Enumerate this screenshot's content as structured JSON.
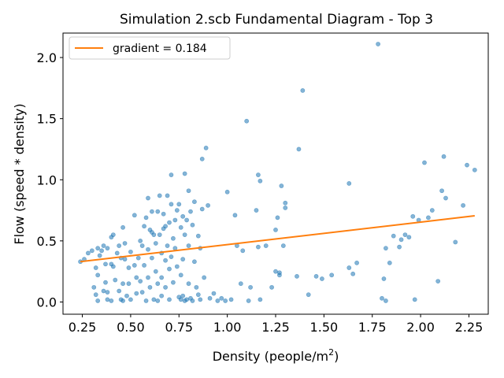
{
  "chart_data": {
    "type": "scatter",
    "title": "Simulation 2.scb Fundamental Diagram - Top 3",
    "xlabel": "Density (people/m",
    "xlabel_sup": "2",
    "xlabel_end": ")",
    "ylabel": "Flow (speed * density)",
    "xlim": [
      0.15,
      2.35
    ],
    "ylim": [
      -0.1,
      2.2
    ],
    "x_ticks": [
      0.25,
      0.5,
      0.75,
      1.0,
      1.25,
      1.5,
      1.75,
      2.0,
      2.25
    ],
    "x_tick_labels": [
      "0.25",
      "0.50",
      "0.75",
      "1.00",
      "1.25",
      "1.50",
      "1.75",
      "2.00",
      "2.25"
    ],
    "y_ticks": [
      0.0,
      0.5,
      1.0,
      1.5,
      2.0
    ],
    "y_tick_labels": [
      "0.0",
      "0.5",
      "1.0",
      "1.5",
      "2.0"
    ],
    "grid": false,
    "legend": {
      "position": "top-left",
      "entries": [
        "gradient = 0.184"
      ]
    },
    "colors": {
      "points": "#1f77b4",
      "fit": "#ff7f0e"
    },
    "series": [
      {
        "type": "line",
        "points": [
          [
            0.24,
            0.33
          ],
          [
            2.28,
            0.705
          ]
        ]
      },
      {
        "type": "scatter",
        "points": [
          [
            0.24,
            0.33
          ],
          [
            0.26,
            0.35
          ],
          [
            0.28,
            0.4
          ],
          [
            0.3,
            0.42
          ],
          [
            0.31,
            0.12
          ],
          [
            0.32,
            0.28
          ],
          [
            0.32,
            0.06
          ],
          [
            0.33,
            0.44
          ],
          [
            0.33,
            0.22
          ],
          [
            0.33,
            0.01
          ],
          [
            0.34,
            0.38
          ],
          [
            0.35,
            0.42
          ],
          [
            0.36,
            0.46
          ],
          [
            0.36,
            0.09
          ],
          [
            0.37,
            0.31
          ],
          [
            0.37,
            0.16
          ],
          [
            0.38,
            0.44
          ],
          [
            0.38,
            0.08
          ],
          [
            0.38,
            0.02
          ],
          [
            0.4,
            0.53
          ],
          [
            0.4,
            0.31
          ],
          [
            0.4,
            0.01
          ],
          [
            0.41,
            0.55
          ],
          [
            0.41,
            0.29
          ],
          [
            0.42,
            0.18
          ],
          [
            0.43,
            0.4
          ],
          [
            0.44,
            0.46
          ],
          [
            0.44,
            0.09
          ],
          [
            0.45,
            0.36
          ],
          [
            0.45,
            0.02
          ],
          [
            0.46,
            0.61
          ],
          [
            0.46,
            0.15
          ],
          [
            0.46,
            0.01
          ],
          [
            0.47,
            0.48
          ],
          [
            0.47,
            0.35
          ],
          [
            0.48,
            0.05
          ],
          [
            0.49,
            0.28
          ],
          [
            0.49,
            0.15
          ],
          [
            0.5,
            0.41
          ],
          [
            0.5,
            0.02
          ],
          [
            0.52,
            0.71
          ],
          [
            0.52,
            0.3
          ],
          [
            0.53,
            0.2
          ],
          [
            0.53,
            0.07
          ],
          [
            0.54,
            0.36
          ],
          [
            0.55,
            0.5
          ],
          [
            0.55,
            0.17
          ],
          [
            0.56,
            0.46
          ],
          [
            0.56,
            0.08
          ],
          [
            0.57,
            0.62
          ],
          [
            0.57,
            0.3
          ],
          [
            0.58,
            0.69
          ],
          [
            0.58,
            0.01
          ],
          [
            0.59,
            0.85
          ],
          [
            0.59,
            0.43
          ],
          [
            0.59,
            0.2
          ],
          [
            0.6,
            0.59
          ],
          [
            0.6,
            0.12
          ],
          [
            0.61,
            0.74
          ],
          [
            0.61,
            0.57
          ],
          [
            0.61,
            0.36
          ],
          [
            0.62,
            0.55
          ],
          [
            0.62,
            0.02
          ],
          [
            0.63,
            0.48
          ],
          [
            0.63,
            0.25
          ],
          [
            0.64,
            0.74
          ],
          [
            0.64,
            0.15
          ],
          [
            0.64,
            0.01
          ],
          [
            0.65,
            0.87
          ],
          [
            0.65,
            0.55
          ],
          [
            0.66,
            0.4
          ],
          [
            0.66,
            0.2
          ],
          [
            0.66,
            0.05
          ],
          [
            0.67,
            0.72
          ],
          [
            0.67,
            0.6
          ],
          [
            0.68,
            0.62
          ],
          [
            0.68,
            0.34
          ],
          [
            0.68,
            0.12
          ],
          [
            0.69,
            0.87
          ],
          [
            0.69,
            0.46
          ],
          [
            0.7,
            0.65
          ],
          [
            0.7,
            0.27
          ],
          [
            0.7,
            0.02
          ],
          [
            0.71,
            1.04
          ],
          [
            0.71,
            0.8
          ],
          [
            0.71,
            0.37
          ],
          [
            0.72,
            0.52
          ],
          [
            0.72,
            0.16
          ],
          [
            0.73,
            0.67
          ],
          [
            0.73,
            0.44
          ],
          [
            0.74,
            0.75
          ],
          [
            0.74,
            0.29
          ],
          [
            0.75,
            0.8
          ],
          [
            0.75,
            0.04
          ],
          [
            0.76,
            0.61
          ],
          [
            0.76,
            0.22
          ],
          [
            0.76,
            0.02
          ],
          [
            0.77,
            0.7
          ],
          [
            0.77,
            0.35
          ],
          [
            0.77,
            0.05
          ],
          [
            0.78,
            1.05
          ],
          [
            0.78,
            0.55
          ],
          [
            0.78,
            0.01
          ],
          [
            0.79,
            0.67
          ],
          [
            0.79,
            0.02
          ],
          [
            0.8,
            0.91
          ],
          [
            0.8,
            0.46
          ],
          [
            0.8,
            0.15
          ],
          [
            0.81,
            0.74
          ],
          [
            0.81,
            0.03
          ],
          [
            0.82,
            0.63
          ],
          [
            0.82,
            0.01
          ],
          [
            0.83,
            0.82
          ],
          [
            0.83,
            0.33
          ],
          [
            0.84,
            0.12
          ],
          [
            0.85,
            0.54
          ],
          [
            0.85,
            0.06
          ],
          [
            0.86,
            0.44
          ],
          [
            0.86,
            0.02
          ],
          [
            0.87,
            1.17
          ],
          [
            0.87,
            0.76
          ],
          [
            0.88,
            0.2
          ],
          [
            0.89,
            1.26
          ],
          [
            0.9,
            0.79
          ],
          [
            0.91,
            0.03
          ],
          [
            0.93,
            0.07
          ],
          [
            0.95,
            0.01
          ],
          [
            0.97,
            0.03
          ],
          [
            0.99,
            0.01
          ],
          [
            1.0,
            0.9
          ],
          [
            1.02,
            0.02
          ],
          [
            1.04,
            0.71
          ],
          [
            1.05,
            0.46
          ],
          [
            1.07,
            0.15
          ],
          [
            1.08,
            0.42
          ],
          [
            1.1,
            1.48
          ],
          [
            1.11,
            0.01
          ],
          [
            1.12,
            0.12
          ],
          [
            1.15,
            0.75
          ],
          [
            1.16,
            0.45
          ],
          [
            1.16,
            1.04
          ],
          [
            1.17,
            0.99
          ],
          [
            1.17,
            0.02
          ],
          [
            1.2,
            0.46
          ],
          [
            1.23,
            0.12
          ],
          [
            1.25,
            0.25
          ],
          [
            1.25,
            0.59
          ],
          [
            1.26,
            0.69
          ],
          [
            1.27,
            0.22
          ],
          [
            1.27,
            0.24
          ],
          [
            1.28,
            0.95
          ],
          [
            1.29,
            0.46
          ],
          [
            1.3,
            0.81
          ],
          [
            1.3,
            0.77
          ],
          [
            1.36,
            0.21
          ],
          [
            1.37,
            1.25
          ],
          [
            1.39,
            1.73
          ],
          [
            1.42,
            0.06
          ],
          [
            1.46,
            0.21
          ],
          [
            1.49,
            0.19
          ],
          [
            1.54,
            0.22
          ],
          [
            1.63,
            0.28
          ],
          [
            1.63,
            0.97
          ],
          [
            1.65,
            0.23
          ],
          [
            1.67,
            0.32
          ],
          [
            1.78,
            2.11
          ],
          [
            1.8,
            0.03
          ],
          [
            1.82,
            0.44
          ],
          [
            1.81,
            0.19
          ],
          [
            1.82,
            0.01
          ],
          [
            1.84,
            0.32
          ],
          [
            1.86,
            0.54
          ],
          [
            1.89,
            0.45
          ],
          [
            1.9,
            0.51
          ],
          [
            1.92,
            0.55
          ],
          [
            1.94,
            0.53
          ],
          [
            1.96,
            0.7
          ],
          [
            1.97,
            0.02
          ],
          [
            1.99,
            0.67
          ],
          [
            2.02,
            1.14
          ],
          [
            2.04,
            0.69
          ],
          [
            2.06,
            0.75
          ],
          [
            2.09,
            0.17
          ],
          [
            2.11,
            0.91
          ],
          [
            2.12,
            1.19
          ],
          [
            2.13,
            0.85
          ],
          [
            2.18,
            0.49
          ],
          [
            2.22,
            0.79
          ],
          [
            2.24,
            1.12
          ],
          [
            2.28,
            1.08
          ]
        ]
      }
    ]
  }
}
